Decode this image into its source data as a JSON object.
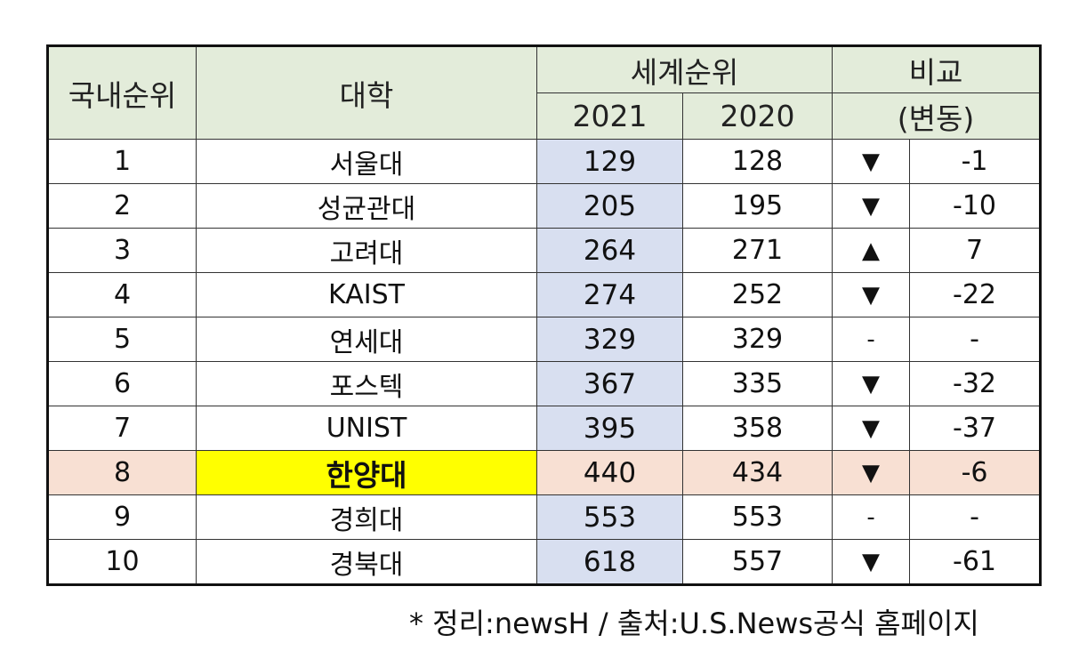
{
  "header": {
    "domestic_rank": "국내순위",
    "university": "대학",
    "world_rank": "세계순위",
    "comparison": "비교",
    "year_2021": "2021",
    "year_2020": "2020",
    "change": "(변동)"
  },
  "rows": [
    {
      "rank": "1",
      "name": "서울대",
      "y2021": "129",
      "y2020": "128",
      "arrow": "▼",
      "change": "-1"
    },
    {
      "rank": "2",
      "name": "성균관대",
      "y2021": "205",
      "y2020": "195",
      "arrow": "▼",
      "change": "-10"
    },
    {
      "rank": "3",
      "name": "고려대",
      "y2021": "264",
      "y2020": "271",
      "arrow": "▲",
      "change": "7"
    },
    {
      "rank": "4",
      "name": "KAIST",
      "y2021": "274",
      "y2020": "252",
      "arrow": "▼",
      "change": "-22"
    },
    {
      "rank": "5",
      "name": "연세대",
      "y2021": "329",
      "y2020": "329",
      "arrow": "-",
      "change": "-"
    },
    {
      "rank": "6",
      "name": "포스텍",
      "y2021": "367",
      "y2020": "335",
      "arrow": "▼",
      "change": "-32"
    },
    {
      "rank": "7",
      "name": "UNIST",
      "y2021": "395",
      "y2020": "358",
      "arrow": "▼",
      "change": "-37"
    },
    {
      "rank": "8",
      "name": "한양대",
      "y2021": "440",
      "y2020": "434",
      "arrow": "▼",
      "change": "-6"
    },
    {
      "rank": "9",
      "name": "경희대",
      "y2021": "553",
      "y2020": "553",
      "arrow": "-",
      "change": "-"
    },
    {
      "rank": "10",
      "name": "경북대",
      "y2021": "618",
      "y2020": "557",
      "arrow": "▼",
      "change": "-61"
    }
  ],
  "footnote": "* 정리:newsH / 출처:U.S.News공식 홈페이지",
  "colors": {
    "header_bg": "#e3ecda",
    "col_2021_bg": "#d8dff0",
    "highlight_row_bg": "#f8e0d3",
    "highlight_name_bg": "#ffff00"
  }
}
